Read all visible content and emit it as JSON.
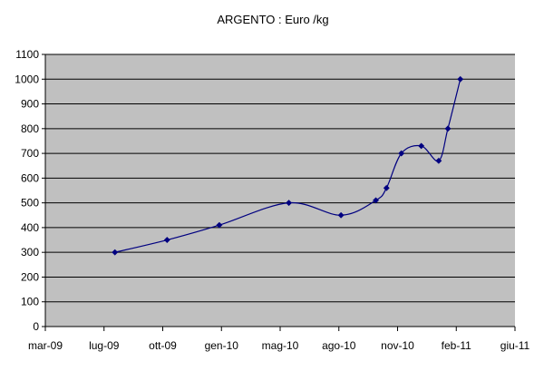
{
  "chart_data": {
    "type": "line",
    "title": "ARGENTO : Euro /kg",
    "xlabel": "",
    "ylabel": "",
    "x_ticks": [
      "mar-09",
      "lug-09",
      "ott-09",
      "gen-10",
      "mag-10",
      "ago-10",
      "nov-10",
      "feb-11",
      "giu-11"
    ],
    "xlim": [
      "2009-03-01",
      "2011-06-01"
    ],
    "ylim": [
      0,
      1100
    ],
    "y_ticks": [
      0,
      100,
      200,
      300,
      400,
      500,
      600,
      700,
      800,
      900,
      1000,
      1100
    ],
    "grid": true,
    "legend": "none",
    "series": [
      {
        "color": "#000080",
        "points": [
          {
            "x": "2009-07-01",
            "y": 300
          },
          {
            "x": "2009-10-01",
            "y": 350
          },
          {
            "x": "2010-01-01",
            "y": 410
          },
          {
            "x": "2010-05-01",
            "y": 500
          },
          {
            "x": "2010-08-01",
            "y": 450
          },
          {
            "x": "2010-10-01",
            "y": 510
          },
          {
            "x": "2010-10-20",
            "y": 560
          },
          {
            "x": "2010-11-15",
            "y": 700
          },
          {
            "x": "2010-12-20",
            "y": 730
          },
          {
            "x": "2011-01-20",
            "y": 670
          },
          {
            "x": "2011-02-05",
            "y": 800
          },
          {
            "x": "2011-02-25",
            "y": 1000
          }
        ]
      }
    ],
    "colors": {
      "plot_background": "#c0c0c0",
      "gridline": "#000000",
      "series": "#000080",
      "axis": "#000000"
    }
  }
}
